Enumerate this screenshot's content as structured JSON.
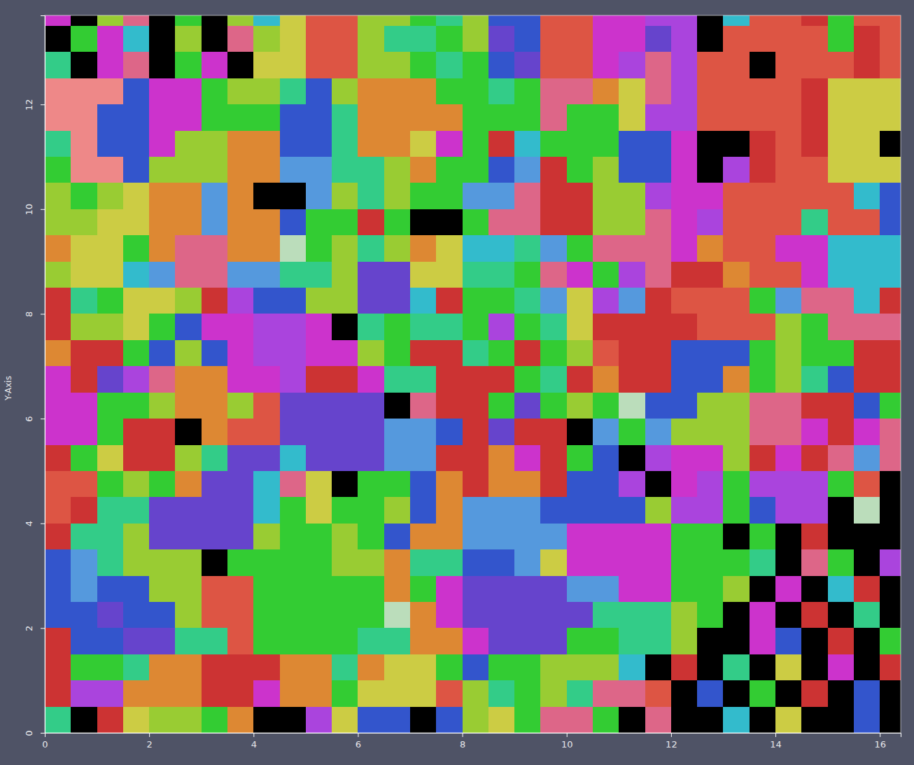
{
  "chart_data": {
    "type": "heatmap",
    "y_label": "Y-Axis",
    "xlim": [
      0,
      16.4
    ],
    "ylim": [
      0,
      13.7
    ],
    "xticks": [
      0,
      2,
      4,
      6,
      8,
      10,
      12,
      14,
      16
    ],
    "yticks": [
      0,
      2,
      4,
      6,
      8,
      10,
      12
    ],
    "x": [
      0,
      0.5,
      1,
      1.5,
      2,
      2.5,
      3,
      3.5,
      4,
      4.5,
      5,
      5.5,
      6,
      6.5,
      7,
      7.5,
      8,
      8.5,
      9,
      9.5,
      10,
      10.5,
      11,
      11.5,
      12,
      12.5,
      13,
      13.5,
      14,
      14.5,
      15,
      15.5,
      16
    ],
    "y": [
      13.5,
      13,
      12.5,
      12,
      11.5,
      11,
      10.5,
      10,
      9.5,
      9,
      8.5,
      8,
      7.5,
      7,
      6.5,
      6,
      5.5,
      5,
      4.5,
      4,
      3.5,
      3,
      2.5,
      2,
      1.5,
      1,
      0.5,
      0
    ],
    "cells": [
      [
        "#c3c",
        "#000",
        "#9c3",
        "#d68",
        "#000",
        "#3c3",
        "#000",
        "#9c3",
        "#3bc",
        "#cc4",
        "#d54",
        "#d54",
        "#9c3",
        "#9c3",
        "#3c3",
        "#3c8",
        "#9c3",
        "#35c",
        "#35c",
        "#d54",
        "#d54",
        "#c3c",
        "#c3c",
        "#a4d",
        "#a4d",
        "#000",
        "#3bc",
        "#d54",
        "#d54",
        "#c33",
        "#3c3",
        "#d54",
        "#d54"
      ],
      [
        "#000",
        "#3c3",
        "#c3c",
        "#3bc",
        "#000",
        "#9c3",
        "#000",
        "#d68",
        "#9c3",
        "#cc4",
        "#d54",
        "#d54",
        "#9c3",
        "#3c8",
        "#3c8",
        "#3c3",
        "#9c3",
        "#64c",
        "#35c",
        "#d54",
        "#d54",
        "#c3c",
        "#c3c",
        "#64c",
        "#a4d",
        "#000",
        "#d54",
        "#d54",
        "#d54",
        "#d54",
        "#3c3",
        "#c33",
        "#d54"
      ],
      [
        "#3c8",
        "#000",
        "#c3c",
        "#d68",
        "#000",
        "#3c3",
        "#c3c",
        "#000",
        "#cc4",
        "#cc4",
        "#d54",
        "#d54",
        "#9c3",
        "#9c3",
        "#3c3",
        "#3c8",
        "#3c3",
        "#35c",
        "#64c",
        "#d54",
        "#d54",
        "#c3c",
        "#a4d",
        "#d68",
        "#a4d",
        "#d54",
        "#d54",
        "#000",
        "#d54",
        "#d54",
        "#d54",
        "#c33",
        "#d54"
      ],
      [
        "#e88",
        "#e88",
        "#e88",
        "#35c",
        "#c3c",
        "#c3c",
        "#3c3",
        "#9c3",
        "#9c3",
        "#3c8",
        "#35c",
        "#9c3",
        "#d83",
        "#d83",
        "#d83",
        "#3c3",
        "#3c3",
        "#3c8",
        "#3c3",
        "#d68",
        "#d68",
        "#d83",
        "#cc4",
        "#d68",
        "#a4d",
        "#d54",
        "#d54",
        "#d54",
        "#d54",
        "#c33",
        "#cc4",
        "#cc4",
        "#cc4"
      ],
      [
        "#e88",
        "#e88",
        "#35c",
        "#35c",
        "#c3c",
        "#c3c",
        "#3c3",
        "#3c3",
        "#3c3",
        "#35c",
        "#35c",
        "#3c8",
        "#d83",
        "#d83",
        "#d83",
        "#d83",
        "#3c3",
        "#3c3",
        "#3c3",
        "#d68",
        "#3c3",
        "#3c3",
        "#cc4",
        "#a4d",
        "#a4d",
        "#d54",
        "#d54",
        "#d54",
        "#d54",
        "#c33",
        "#cc4",
        "#cc4",
        "#cc4"
      ],
      [
        "#3c8",
        "#e88",
        "#35c",
        "#35c",
        "#c3c",
        "#9c3",
        "#9c3",
        "#d83",
        "#d83",
        "#35c",
        "#35c",
        "#3c8",
        "#d83",
        "#d83",
        "#cc4",
        "#c3c",
        "#3c3",
        "#c33",
        "#3bc",
        "#3c3",
        "#3c3",
        "#3c3",
        "#35c",
        "#35c",
        "#c3c",
        "#000",
        "#000",
        "#c33",
        "#d54",
        "#c33",
        "#cc4",
        "#cc4",
        "#000"
      ],
      [
        "#3c3",
        "#e88",
        "#e88",
        "#35c",
        "#9c3",
        "#9c3",
        "#9c3",
        "#d83",
        "#d83",
        "#59d",
        "#59d",
        "#3c8",
        "#3c8",
        "#9c3",
        "#d83",
        "#3c3",
        "#3c3",
        "#35c",
        "#59d",
        "#c33",
        "#3c3",
        "#9c3",
        "#35c",
        "#35c",
        "#c3c",
        "#000",
        "#a4d",
        "#c33",
        "#d54",
        "#d54",
        "#cc4",
        "#cc4",
        "#cc4"
      ],
      [
        "#9c3",
        "#3c3",
        "#9c3",
        "#cc4",
        "#d83",
        "#d83",
        "#59d",
        "#d83",
        "#000",
        "#000",
        "#59d",
        "#9c3",
        "#3c8",
        "#9c3",
        "#3c3",
        "#3c3",
        "#59d",
        "#59d",
        "#d68",
        "#c33",
        "#c33",
        "#9c3",
        "#9c3",
        "#a4d",
        "#c3c",
        "#c3c",
        "#d54",
        "#d54",
        "#d54",
        "#d54",
        "#d54",
        "#3bc",
        "#35c"
      ],
      [
        "#9c3",
        "#9c3",
        "#cc4",
        "#cc4",
        "#d83",
        "#d83",
        "#59d",
        "#d83",
        "#d83",
        "#35c",
        "#3c3",
        "#3c3",
        "#c33",
        "#3c3",
        "#000",
        "#000",
        "#3c3",
        "#d68",
        "#d68",
        "#c33",
        "#c33",
        "#9c3",
        "#9c3",
        "#d68",
        "#c3c",
        "#a4d",
        "#d54",
        "#d54",
        "#d54",
        "#3c8",
        "#d54",
        "#d54",
        "#35c"
      ],
      [
        "#d83",
        "#cc4",
        "#cc4",
        "#3c3",
        "#d83",
        "#d68",
        "#d68",
        "#d83",
        "#d83",
        "#bdb",
        "#3c3",
        "#9c3",
        "#3c8",
        "#9c3",
        "#d83",
        "#cc4",
        "#3bc",
        "#3bc",
        "#3c8",
        "#59d",
        "#3c3",
        "#d68",
        "#d68",
        "#d68",
        "#c3c",
        "#d83",
        "#d54",
        "#d54",
        "#c3c",
        "#c3c",
        "#3bc",
        "#3bc",
        "#3bc"
      ],
      [
        "#9c3",
        "#cc4",
        "#cc4",
        "#3bc",
        "#59d",
        "#d68",
        "#d68",
        "#59d",
        "#59d",
        "#3c8",
        "#3c8",
        "#9c3",
        "#64c",
        "#64c",
        "#cc4",
        "#cc4",
        "#3c8",
        "#3c8",
        "#3c3",
        "#d68",
        "#c3c",
        "#3c3",
        "#a4d",
        "#d68",
        "#c33",
        "#c33",
        "#d83",
        "#d54",
        "#d54",
        "#c3c",
        "#3bc",
        "#3bc",
        "#3bc"
      ],
      [
        "#c33",
        "#3c8",
        "#3c3",
        "#cc4",
        "#cc4",
        "#9c3",
        "#c33",
        "#a4d",
        "#35c",
        "#35c",
        "#9c3",
        "#9c3",
        "#64c",
        "#64c",
        "#3bc",
        "#c33",
        "#3c3",
        "#3c3",
        "#3c8",
        "#59d",
        "#cc4",
        "#a4d",
        "#59d",
        "#c33",
        "#d54",
        "#d54",
        "#d54",
        "#3c3",
        "#59d",
        "#d68",
        "#d68",
        "#3bc",
        "#c33"
      ],
      [
        "#c33",
        "#9c3",
        "#9c3",
        "#cc4",
        "#3c3",
        "#35c",
        "#c3c",
        "#c3c",
        "#a4d",
        "#a4d",
        "#c3c",
        "#000",
        "#3c8",
        "#3c3",
        "#3c8",
        "#3c8",
        "#3c3",
        "#a4d",
        "#3c3",
        "#3c8",
        "#cc4",
        "#c33",
        "#c33",
        "#c33",
        "#c33",
        "#d54",
        "#d54",
        "#d54",
        "#9c3",
        "#3c3",
        "#d68",
        "#d68",
        "#d68"
      ],
      [
        "#d83",
        "#c33",
        "#c33",
        "#3c3",
        "#35c",
        "#9c3",
        "#35c",
        "#c3c",
        "#a4d",
        "#a4d",
        "#c3c",
        "#c3c",
        "#9c3",
        "#3c3",
        "#c33",
        "#c33",
        "#3c8",
        "#3c3",
        "#c33",
        "#3c3",
        "#9c3",
        "#d54",
        "#c33",
        "#c33",
        "#35c",
        "#35c",
        "#35c",
        "#3c3",
        "#9c3",
        "#3c3",
        "#3c3",
        "#c33",
        "#c33"
      ],
      [
        "#c3c",
        "#c33",
        "#64c",
        "#a4d",
        "#d68",
        "#d83",
        "#d83",
        "#c3c",
        "#c3c",
        "#a4d",
        "#c33",
        "#c33",
        "#c3c",
        "#3c8",
        "#3c8",
        "#c33",
        "#c33",
        "#c33",
        "#3c3",
        "#3c8",
        "#c33",
        "#d83",
        "#c33",
        "#c33",
        "#35c",
        "#35c",
        "#d83",
        "#3c3",
        "#9c3",
        "#3c8",
        "#35c",
        "#c33",
        "#c33"
      ],
      [
        "#c3c",
        "#c3c",
        "#3c3",
        "#3c3",
        "#9c3",
        "#d83",
        "#d83",
        "#9c3",
        "#d54",
        "#64c",
        "#64c",
        "#64c",
        "#64c",
        "#000",
        "#d68",
        "#c33",
        "#c33",
        "#3c3",
        "#64c",
        "#3c3",
        "#9c3",
        "#3c3",
        "#bdb",
        "#35c",
        "#35c",
        "#9c3",
        "#9c3",
        "#d68",
        "#d68",
        "#c33",
        "#c33",
        "#35c",
        "#3c3"
      ],
      [
        "#c3c",
        "#c3c",
        "#3c3",
        "#c33",
        "#c33",
        "#000",
        "#d83",
        "#d54",
        "#d54",
        "#64c",
        "#64c",
        "#64c",
        "#64c",
        "#59d",
        "#59d",
        "#35c",
        "#c33",
        "#64c",
        "#c33",
        "#c33",
        "#000",
        "#59d",
        "#3c3",
        "#59d",
        "#9c3",
        "#9c3",
        "#9c3",
        "#d68",
        "#d68",
        "#c3c",
        "#c33",
        "#c3c",
        "#d68"
      ],
      [
        "#c33",
        "#3c3",
        "#cc4",
        "#c33",
        "#c33",
        "#9c3",
        "#3c8",
        "#64c",
        "#64c",
        "#3bc",
        "#64c",
        "#64c",
        "#64c",
        "#59d",
        "#59d",
        "#c33",
        "#c33",
        "#d83",
        "#c3c",
        "#c33",
        "#3c3",
        "#35c",
        "#000",
        "#a4d",
        "#c3c",
        "#c3c",
        "#9c3",
        "#c33",
        "#c3c",
        "#c33",
        "#d68",
        "#59d",
        "#d68"
      ],
      [
        "#d54",
        "#d54",
        "#3c3",
        "#9c3",
        "#3c3",
        "#d83",
        "#64c",
        "#64c",
        "#3bc",
        "#d68",
        "#cc4",
        "#000",
        "#3c3",
        "#3c3",
        "#35c",
        "#d83",
        "#c33",
        "#d83",
        "#d83",
        "#c33",
        "#35c",
        "#35c",
        "#a4d",
        "#000",
        "#c3c",
        "#a4d",
        "#3c3",
        "#a4d",
        "#a4d",
        "#a4d",
        "#3c3",
        "#d54",
        "#000"
      ],
      [
        "#d54",
        "#c33",
        "#3c8",
        "#3c8",
        "#64c",
        "#64c",
        "#64c",
        "#64c",
        "#3bc",
        "#3c3",
        "#cc4",
        "#3c3",
        "#3c3",
        "#9c3",
        "#35c",
        "#d83",
        "#59d",
        "#59d",
        "#59d",
        "#35c",
        "#35c",
        "#35c",
        "#35c",
        "#9c3",
        "#a4d",
        "#a4d",
        "#3c3",
        "#35c",
        "#a4d",
        "#a4d",
        "#000",
        "#bdb",
        "#000"
      ],
      [
        "#c33",
        "#3c8",
        "#3c8",
        "#9c3",
        "#64c",
        "#64c",
        "#64c",
        "#64c",
        "#9c3",
        "#3c3",
        "#3c3",
        "#9c3",
        "#3c3",
        "#35c",
        "#d83",
        "#d83",
        "#59d",
        "#59d",
        "#59d",
        "#59d",
        "#c3c",
        "#c3c",
        "#c3c",
        "#c3c",
        "#3c3",
        "#3c3",
        "#000",
        "#3c3",
        "#000",
        "#c33",
        "#000",
        "#000",
        "#000"
      ],
      [
        "#35c",
        "#59d",
        "#3c8",
        "#9c3",
        "#9c3",
        "#9c3",
        "#000",
        "#3c3",
        "#3c3",
        "#3c3",
        "#3c3",
        "#9c3",
        "#9c3",
        "#d83",
        "#3c8",
        "#3c8",
        "#35c",
        "#35c",
        "#59d",
        "#cc4",
        "#c3c",
        "#c3c",
        "#c3c",
        "#c3c",
        "#3c3",
        "#3c3",
        "#3c3",
        "#3c8",
        "#000",
        "#d68",
        "#3c3",
        "#000",
        "#a4d"
      ],
      [
        "#35c",
        "#59d",
        "#35c",
        "#35c",
        "#9c3",
        "#9c3",
        "#d54",
        "#d54",
        "#3c3",
        "#3c3",
        "#3c3",
        "#3c3",
        "#3c3",
        "#d83",
        "#3c3",
        "#c3c",
        "#64c",
        "#64c",
        "#64c",
        "#64c",
        "#59d",
        "#59d",
        "#c3c",
        "#c3c",
        "#3c3",
        "#3c3",
        "#9c3",
        "#000",
        "#c3c",
        "#000",
        "#3bc",
        "#c33",
        "#000"
      ],
      [
        "#35c",
        "#35c",
        "#64c",
        "#35c",
        "#35c",
        "#9c3",
        "#d54",
        "#d54",
        "#3c3",
        "#3c3",
        "#3c3",
        "#3c3",
        "#3c3",
        "#bdb",
        "#d83",
        "#c3c",
        "#64c",
        "#64c",
        "#64c",
        "#64c",
        "#64c",
        "#3c8",
        "#3c8",
        "#3c8",
        "#9c3",
        "#3c3",
        "#000",
        "#c3c",
        "#000",
        "#c33",
        "#000",
        "#3c8",
        "#000"
      ],
      [
        "#c33",
        "#35c",
        "#35c",
        "#64c",
        "#64c",
        "#3c8",
        "#3c8",
        "#d54",
        "#3c3",
        "#3c3",
        "#3c3",
        "#3c3",
        "#3c8",
        "#3c8",
        "#d83",
        "#d83",
        "#c3c",
        "#64c",
        "#64c",
        "#64c",
        "#3c3",
        "#3c3",
        "#3c8",
        "#3c8",
        "#9c3",
        "#000",
        "#000",
        "#c3c",
        "#35c",
        "#000",
        "#c33",
        "#000",
        "#3c3"
      ],
      [
        "#c33",
        "#3c3",
        "#3c3",
        "#3c8",
        "#d83",
        "#d83",
        "#c33",
        "#c33",
        "#c33",
        "#d83",
        "#d83",
        "#3c8",
        "#d83",
        "#cc4",
        "#cc4",
        "#3c3",
        "#35c",
        "#3c3",
        "#3c3",
        "#9c3",
        "#9c3",
        "#9c3",
        "#3bc",
        "#000",
        "#c33",
        "#000",
        "#3c8",
        "#000",
        "#cc4",
        "#000",
        "#c3c",
        "#000",
        "#c33"
      ],
      [
        "#c33",
        "#a4d",
        "#a4d",
        "#d83",
        "#d83",
        "#d83",
        "#c33",
        "#c33",
        "#c3c",
        "#d83",
        "#d83",
        "#3c3",
        "#cc4",
        "#cc4",
        "#cc4",
        "#d54",
        "#9c3",
        "#3c8",
        "#3c3",
        "#9c3",
        "#3c8",
        "#d68",
        "#d68",
        "#d54",
        "#000",
        "#35c",
        "#000",
        "#3c3",
        "#000",
        "#c33",
        "#000",
        "#35c",
        "#000"
      ],
      [
        "#3c8",
        "#000",
        "#c33",
        "#cc4",
        "#9c3",
        "#9c3",
        "#3c3",
        "#d83",
        "#000",
        "#000",
        "#a4d",
        "#cc4",
        "#35c",
        "#35c",
        "#000",
        "#35c",
        "#9c3",
        "#cc4",
        "#3c3",
        "#d68",
        "#d68",
        "#3c3",
        "#000",
        "#d68",
        "#000",
        "#000",
        "#3bc",
        "#000",
        "#cc4",
        "#000",
        "#000",
        "#35c",
        "#000"
      ]
    ]
  }
}
